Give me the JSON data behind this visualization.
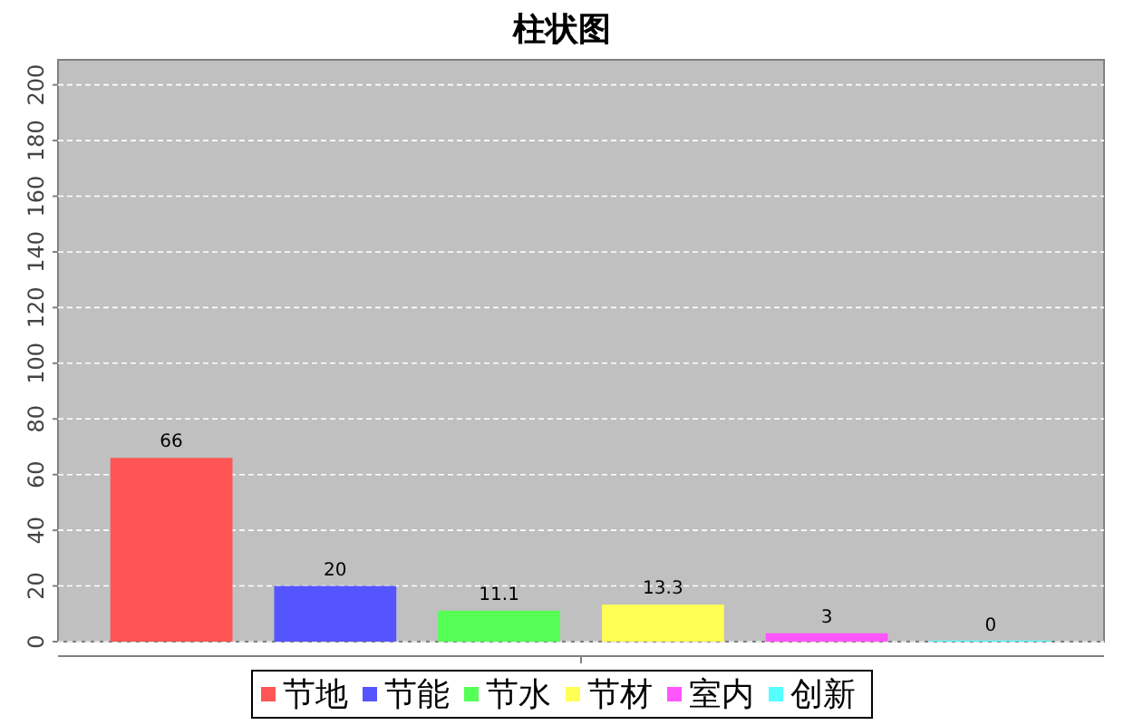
{
  "chart_data": {
    "type": "bar",
    "title": "柱状图",
    "categories": [
      null
    ],
    "series": [
      {
        "name": "节地",
        "color": "#ff5555",
        "values": [
          66
        ]
      },
      {
        "name": "节能",
        "color": "#5555ff",
        "values": [
          20
        ]
      },
      {
        "name": "节水",
        "color": "#55ff55",
        "values": [
          11.1
        ]
      },
      {
        "name": "节材",
        "color": "#ffff55",
        "values": [
          13.3
        ]
      },
      {
        "name": "室内",
        "color": "#ff55ff",
        "values": [
          3
        ]
      },
      {
        "name": "创新",
        "color": "#55ffff",
        "values": [
          0
        ]
      }
    ],
    "ylim": [
      0,
      209
    ],
    "yticks": [
      0,
      20,
      40,
      60,
      80,
      100,
      120,
      140,
      160,
      180,
      200
    ],
    "grid": "y",
    "data_labels": true,
    "legend": "bottom"
  }
}
